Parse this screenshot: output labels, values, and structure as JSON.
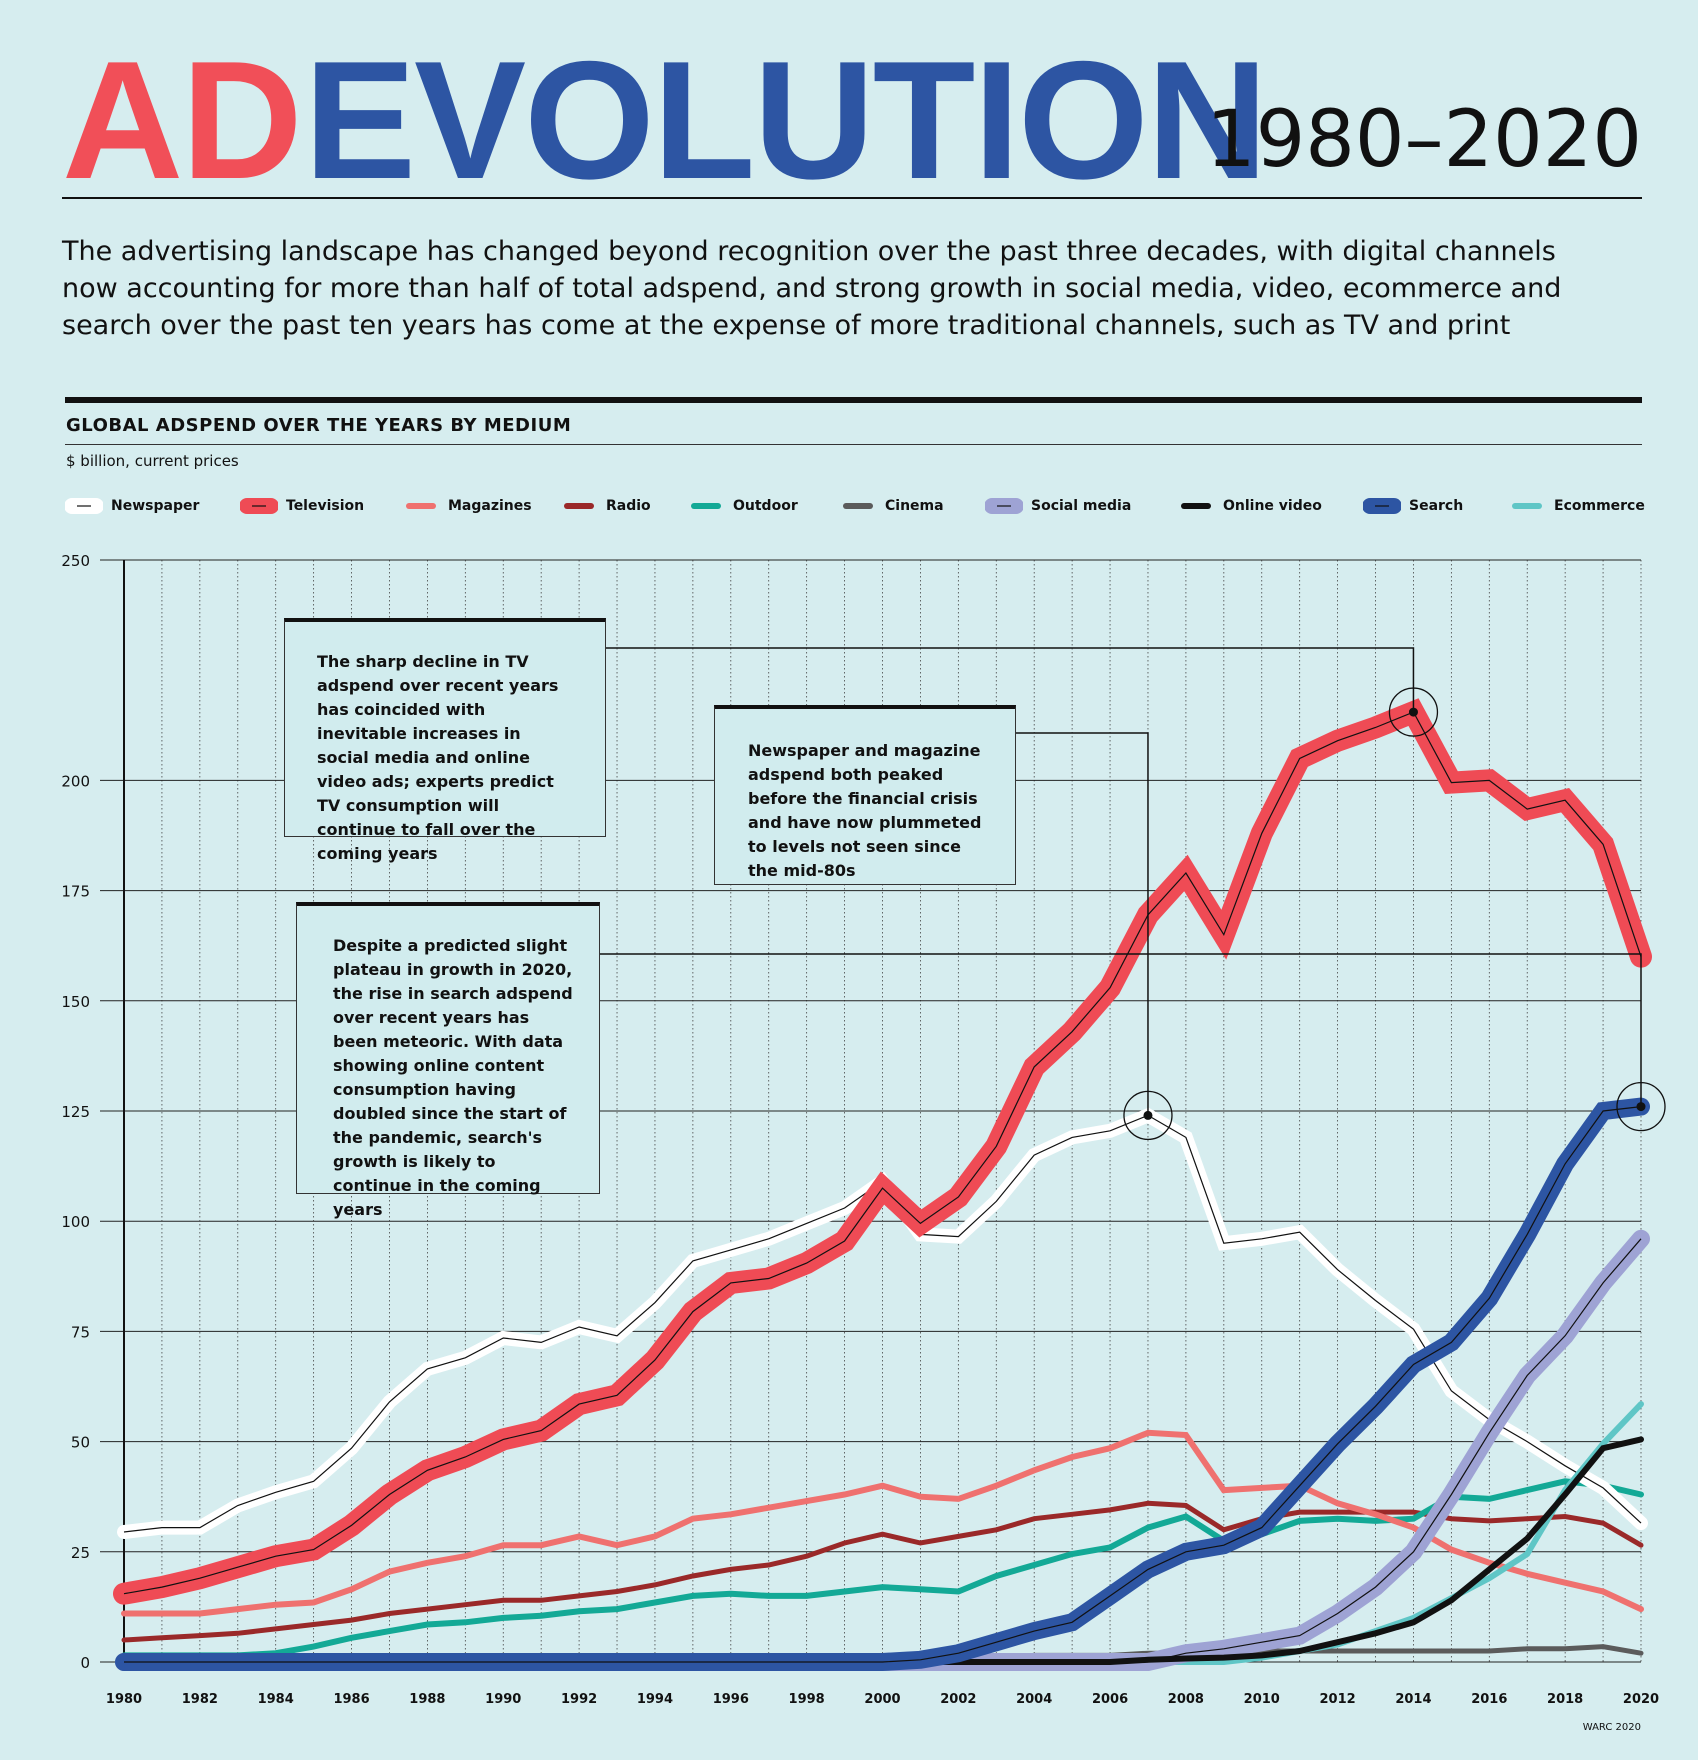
{
  "header": {
    "title_part1": "AD",
    "title_part2": "EVOLUTION",
    "years": "1980–2020",
    "intro": "The advertising landscape has changed beyond recognition over the past three decades, with digital channels now accounting for more than half of total adspend, and strong growth in social media, video, ecommerce and search over the past ten years has come at the expense of more traditional channels, such as TV and print"
  },
  "credit": "WARC 2020",
  "callouts": {
    "tv": "The sharp decline in TV adspend over recent years has coincided with inevitable increases in social media and online video ads; experts predict TV consumption will continue to fall over the coming years",
    "newspaper": "Newspaper and magazine adspend both peaked before the financial crisis and have now plummeted to levels not seen since the mid-80s",
    "search": "Despite a predicted slight plateau in growth in 2020, the rise in search adspend over recent years has been meteoric. With data showing online content consumption having doubled since the start of the pandemic, search's growth is likely to continue in the coming years"
  },
  "colors": {
    "newspaper": "#ffffff",
    "television": "#ef4b55",
    "magazines": "#ef716f",
    "radio": "#9a2929",
    "outdoor": "#13a996",
    "cinema": "#5b5b5b",
    "social": "#9ea3d4",
    "online_video": "#111111",
    "search": "#2d55a3",
    "ecommerce": "#5fc6c6"
  },
  "chart_data": {
    "type": "line",
    "title": "GLOBAL ADSPEND OVER THE YEARS BY MEDIUM",
    "subtitle": "$ billion, current prices",
    "xlabel": "",
    "ylabel": "",
    "ylim": [
      0,
      250
    ],
    "yticks": [
      0,
      25,
      50,
      75,
      100,
      125,
      150,
      175,
      200,
      250
    ],
    "xticks": [
      1980,
      1982,
      1984,
      1986,
      1988,
      1990,
      1992,
      1994,
      1996,
      1998,
      2000,
      2002,
      2004,
      2006,
      2008,
      2010,
      2012,
      2014,
      2016,
      2018,
      2020
    ],
    "x": [
      1980,
      1981,
      1982,
      1983,
      1984,
      1985,
      1986,
      1987,
      1988,
      1989,
      1990,
      1991,
      1992,
      1993,
      1994,
      1995,
      1996,
      1997,
      1998,
      1999,
      2000,
      2001,
      2002,
      2003,
      2004,
      2005,
      2006,
      2007,
      2008,
      2009,
      2010,
      2011,
      2012,
      2013,
      2014,
      2015,
      2016,
      2017,
      2018,
      2019,
      2020
    ],
    "grid": true,
    "legend_position": "top",
    "series": [
      {
        "name": "Newspaper",
        "key": "newspaper",
        "values": [
          29.5,
          30.5,
          30.5,
          35.5,
          38.5,
          41,
          48.5,
          59,
          66.5,
          69,
          73.5,
          72.5,
          76,
          74,
          81.5,
          91,
          93.5,
          96,
          99.5,
          103,
          109,
          97,
          96.5,
          104.5,
          115,
          119,
          120.5,
          124,
          119,
          95,
          96,
          97.5,
          89,
          82,
          75.5,
          61.5,
          55,
          50,
          44.5,
          39.5,
          31.5
        ]
      },
      {
        "name": "Television",
        "key": "television",
        "values": [
          15.5,
          17,
          19,
          21.5,
          24,
          25.5,
          31,
          38,
          43.5,
          46.5,
          50.5,
          52.5,
          58.5,
          60.5,
          68.5,
          79.5,
          86,
          87,
          90.5,
          95.5,
          107.5,
          99.5,
          105.5,
          117,
          135,
          143,
          153,
          169.5,
          179,
          165,
          188,
          205,
          209,
          212,
          215.5,
          199.5,
          200,
          193.5,
          195.5,
          185.5,
          160
        ]
      },
      {
        "name": "Magazines",
        "key": "magazines",
        "values": [
          11,
          11,
          11,
          12,
          13,
          13.5,
          16.5,
          20.5,
          22.5,
          24,
          26.5,
          26.5,
          28.5,
          26.5,
          28.5,
          32.5,
          33.5,
          35,
          36.5,
          38,
          40,
          37.5,
          37,
          40,
          43.5,
          46.5,
          48.5,
          52,
          51.5,
          39,
          39.5,
          40,
          36,
          33.5,
          30.5,
          25.5,
          22.5,
          20,
          18,
          16,
          12
        ]
      },
      {
        "name": "Radio",
        "key": "radio",
        "values": [
          5,
          5.5,
          6,
          6.5,
          7.5,
          8.5,
          9.5,
          11,
          12,
          13,
          14,
          14,
          15,
          16,
          17.5,
          19.5,
          21,
          22,
          24,
          27,
          29,
          27,
          28.5,
          30,
          32.5,
          33.5,
          34.5,
          36,
          35.5,
          30,
          32.5,
          34,
          34,
          34,
          34,
          32.5,
          32,
          32.5,
          33,
          31.5,
          26.5
        ]
      },
      {
        "name": "Outdoor",
        "key": "outdoor",
        "values": [
          1.5,
          1.5,
          1.5,
          1.5,
          2,
          3.5,
          5.5,
          7,
          8.5,
          9,
          10,
          10.5,
          11.5,
          12,
          13.5,
          15,
          15.5,
          15,
          15,
          16,
          17,
          16.5,
          16,
          19.5,
          22,
          24.5,
          26,
          30.5,
          33,
          27.5,
          29,
          32,
          32.5,
          32,
          32.5,
          37.5,
          37,
          39,
          41,
          40,
          38
        ]
      },
      {
        "name": "Cinema",
        "key": "cinema",
        "values": [
          0,
          0,
          0,
          0,
          0,
          0,
          0,
          0,
          0,
          0,
          0,
          0,
          0,
          0,
          0,
          0,
          0,
          0,
          0,
          0,
          0,
          0.5,
          0.5,
          1,
          1.5,
          1.5,
          1.5,
          2,
          2,
          2,
          2.5,
          2.5,
          2.5,
          2.5,
          2.5,
          2.5,
          2.5,
          3,
          3,
          3.5,
          2
        ]
      },
      {
        "name": "Social media",
        "key": "social",
        "values": [
          0,
          0,
          0,
          0,
          0,
          0,
          0,
          0,
          0,
          0,
          0,
          0,
          0,
          0,
          0,
          0,
          0,
          0,
          0,
          0,
          0,
          0,
          0,
          0,
          0,
          0,
          0,
          0,
          2,
          3,
          4.5,
          6,
          11,
          17,
          25,
          38,
          52,
          65,
          74,
          86,
          96
        ]
      },
      {
        "name": "Online video",
        "key": "online_video",
        "values": [
          0,
          0,
          0,
          0,
          0,
          0,
          0,
          0,
          0,
          0,
          0,
          0,
          0,
          0,
          0,
          0,
          0,
          0,
          0,
          0,
          0,
          0,
          0,
          0,
          0,
          0,
          0,
          0.5,
          0.8,
          1,
          1.5,
          2.5,
          4.5,
          6.5,
          9,
          14,
          21,
          28,
          38,
          48.5,
          50.5
        ]
      },
      {
        "name": "Search",
        "key": "search",
        "values": [
          0,
          0,
          0,
          0,
          0,
          0,
          0,
          0,
          0,
          0,
          0,
          0,
          0,
          0,
          0,
          0,
          0,
          0,
          0,
          0,
          0,
          0.5,
          2,
          4.5,
          7,
          9,
          15,
          21,
          25,
          26.5,
          30.5,
          40,
          49.5,
          58,
          67.5,
          72.5,
          82.5,
          97,
          113,
          125,
          126
        ]
      },
      {
        "name": "Ecommerce",
        "key": "ecommerce",
        "values": [
          0,
          0,
          0,
          0,
          0,
          0,
          0,
          0,
          0,
          0,
          0,
          0,
          0,
          0,
          0,
          0,
          0,
          0,
          0,
          0,
          0,
          0,
          0,
          0,
          0,
          0,
          0,
          0,
          0,
          0,
          1,
          2.5,
          4,
          7,
          10,
          14.5,
          19,
          24.5,
          39,
          49.5,
          58.5
        ]
      }
    ]
  }
}
